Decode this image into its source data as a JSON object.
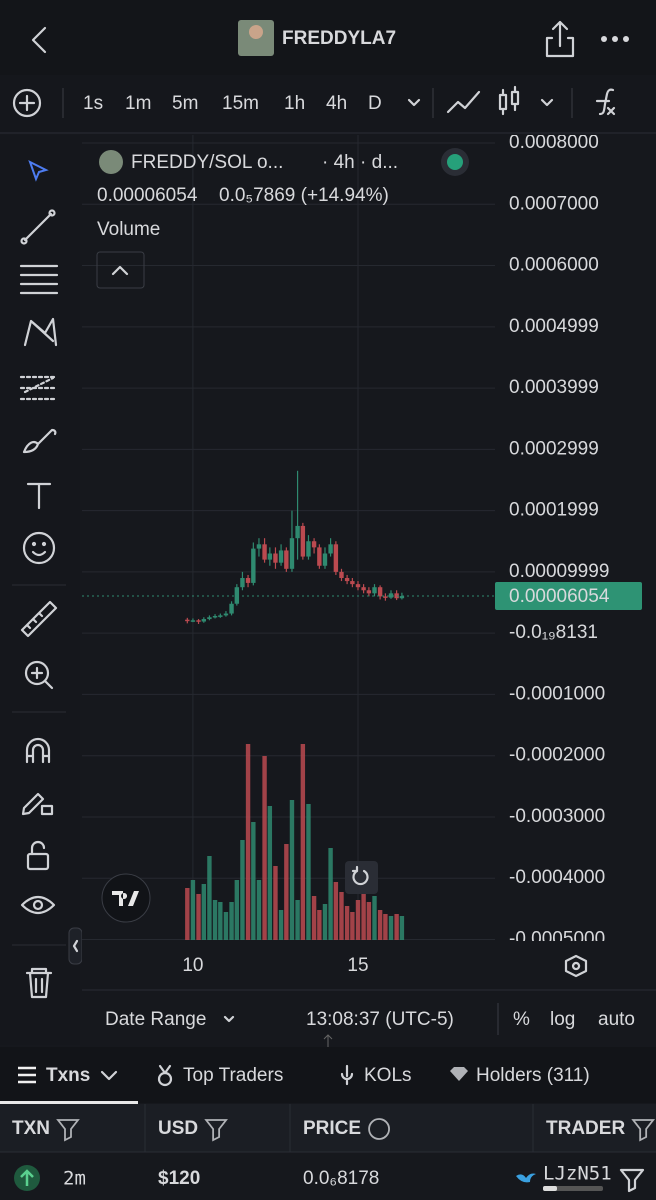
{
  "header": {
    "title": "FREDDYLA7"
  },
  "toolbar": {
    "intervals": [
      "1s",
      "1m",
      "5m",
      "15m",
      "1h",
      "4h",
      "D"
    ],
    "active": "4h"
  },
  "chart_data": {
    "type": "candlestick",
    "symbol": "FREDDY/SOL o...",
    "interval_info": "· 4h · d...",
    "quote": "0.00006054",
    "change": "0.0₅7869 (+14.94%)",
    "volume_label": "Volume",
    "last_price": 6.054e-05,
    "up_color": "#2f8a70",
    "down_color": "#bb4a50",
    "x": [
      9.83,
      10.0,
      10.17,
      10.33,
      10.5,
      10.67,
      10.83,
      11.0,
      11.17,
      11.33,
      11.5,
      11.67,
      11.83,
      12.0,
      12.17,
      12.33,
      12.5,
      12.67,
      12.83,
      13.0,
      13.17,
      13.33,
      13.5,
      13.67,
      13.83,
      14.0,
      14.17,
      14.33,
      14.5,
      14.67,
      14.83,
      15.0,
      15.17,
      15.33,
      15.5,
      15.67,
      15.83,
      16.0,
      16.17,
      16.33
    ],
    "open": [
      2.2e-05,
      2e-05,
      2.1e-05,
      1.9e-05,
      2.3e-05,
      2.6e-05,
      2.8e-05,
      2.9e-05,
      3.2e-05,
      4.8e-05,
      7.5e-05,
      9e-05,
      8.2e-05,
      0.000138,
      0.000145,
      0.00012,
      0.00013,
      0.000115,
      0.000135,
      0.000105,
      0.000155,
      0.000175,
      0.000125,
      0.00015,
      0.00014,
      0.00011,
      0.00013,
      0.000145,
      0.0001,
      9e-05,
      8.5e-05,
      8e-05,
      7.5e-05,
      7e-05,
      6.5e-05,
      7.5e-05,
      6e-05,
      5.8e-05,
      6.5e-05,
      5.7e-05
    ],
    "high": [
      2.5e-05,
      2.4e-05,
      2.3e-05,
      2.6e-05,
      2.9e-05,
      3.1e-05,
      3.2e-05,
      3.6e-05,
      5.2e-05,
      8e-05,
      0.0001,
      9.5e-05,
      0.000148,
      0.000155,
      0.000155,
      0.00014,
      0.00014,
      0.000145,
      0.00014,
      0.0002,
      0.000265,
      0.00018,
      0.00016,
      0.000155,
      0.000145,
      0.00014,
      0.000155,
      0.00015,
      0.000105,
      9.5e-05,
      9e-05,
      8.5e-05,
      8e-05,
      7.5e-05,
      8e-05,
      7.8e-05,
      6.5e-05,
      7e-05,
      7e-05,
      6.6e-05
    ],
    "low": [
      1.6e-05,
      1.8e-05,
      1.5e-05,
      1.7e-05,
      2.1e-05,
      2.4e-05,
      2.5e-05,
      2.7e-05,
      2.9e-05,
      4.5e-05,
      7e-05,
      7.5e-05,
      7.8e-05,
      0.000125,
      0.000115,
      0.00011,
      0.000105,
      0.00011,
      0.0001,
      0.0001,
      0.00012,
      0.00012,
      0.00012,
      0.00013,
      0.000105,
      0.000105,
      0.000125,
      9.5e-05,
      8.5e-05,
      8e-05,
      7.5e-05,
      7e-05,
      6.5e-05,
      6e-05,
      6e-05,
      5.5e-05,
      5.3e-05,
      5.6e-05,
      5.4e-05,
      5.5e-05
    ],
    "close": [
      2e-05,
      2.1e-05,
      1.9e-05,
      2.3e-05,
      2.6e-05,
      2.8e-05,
      2.9e-05,
      3.2e-05,
      4.8e-05,
      7.5e-05,
      9e-05,
      8.2e-05,
      0.000138,
      0.000145,
      0.00012,
      0.00013,
      0.000115,
      0.000135,
      0.000105,
      0.000155,
      0.000175,
      0.000125,
      0.00015,
      0.00014,
      0.00011,
      0.00013,
      0.000145,
      0.0001,
      9e-05,
      8.5e-05,
      8e-05,
      7.5e-05,
      7e-05,
      6.5e-05,
      7.5e-05,
      6e-05,
      5.8e-05,
      6.5e-05,
      5.7e-05,
      6.054e-05
    ],
    "volume": [
      52,
      60,
      46,
      56,
      84,
      40,
      38,
      28,
      38,
      60,
      100,
      196,
      118,
      60,
      184,
      134,
      74,
      30,
      96,
      140,
      40,
      196,
      136,
      44,
      30,
      36,
      92,
      58,
      48,
      34,
      28,
      40,
      52,
      38,
      44,
      30,
      26,
      24,
      26,
      24
    ],
    "xlim": [
      6.64,
      19.15
    ],
    "xticks": [
      10,
      15
    ],
    "ylim": [
      -0.0005,
      0.0008
    ],
    "yticks": [
      {
        "value": 0.0008,
        "label": "0.0008000"
      },
      {
        "value": 0.0007,
        "label": "0.0007000"
      },
      {
        "value": 0.0006,
        "label": "0.0006000"
      },
      {
        "value": 0.0004999,
        "label": "0.0004999"
      },
      {
        "value": 0.0003999,
        "label": "0.0003999"
      },
      {
        "value": 0.0002999,
        "label": "0.0002999"
      },
      {
        "value": 0.0001999,
        "label": "0.0001999"
      },
      {
        "value": 9.999e-05,
        "label": "0.00009999"
      },
      {
        "value": -8.131e-20,
        "label": "-0.0₁₉8131"
      },
      {
        "value": -0.0001,
        "label": "-0.0001000"
      },
      {
        "value": -0.0002,
        "label": "-0.0002000"
      },
      {
        "value": -0.0003,
        "label": "-0.0003000"
      },
      {
        "value": -0.0004,
        "label": "-0.0004000"
      },
      {
        "value": -0.0005,
        "label": "-0.0005000"
      }
    ],
    "grid": true
  },
  "footer": {
    "date_range": "Date Range",
    "time": "13:08:37 (UTC-5)",
    "percent": "%",
    "log": "log",
    "auto": "auto"
  },
  "tabs": [
    "Txns",
    "Top Traders",
    "KOLs",
    "Holders (311)"
  ],
  "table": {
    "headers": [
      "TXN",
      "USD",
      "PRICE",
      "TRADER"
    ],
    "rows": [
      [
        "2m",
        "$120",
        "0.0₆8178",
        "LJzN51"
      ]
    ]
  }
}
